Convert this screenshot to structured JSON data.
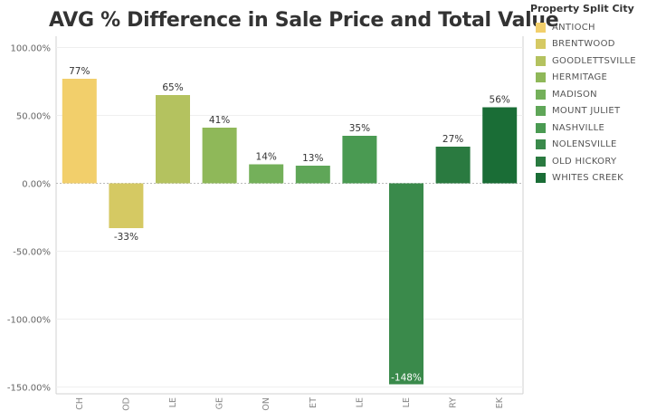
{
  "chart_data": {
    "type": "bar",
    "title": "AVG % Difference in Sale Price and Total Value",
    "xlabel": "",
    "ylabel": "",
    "categories": [
      "ANTIOCH",
      "BRENTWOOD",
      "GOODLETTSVILLE",
      "HERMITAGE",
      "MADISON",
      "MOUNT JULIET",
      "NASHVILLE",
      "NOLENSVILLE",
      "OLD HICKORY",
      "WHITES CREEK"
    ],
    "category_axis_labels": [
      "CH",
      "OD",
      "VI  LE",
      "GE",
      "ON",
      "ET",
      "LE",
      "LE",
      "RY",
      "EK"
    ],
    "values": [
      77,
      -33,
      65,
      41,
      14,
      13,
      35,
      -148,
      27,
      56
    ],
    "data_labels": [
      "77%",
      "-33%",
      "65%",
      "41%",
      "14%",
      "13%",
      "35%",
      "-148%",
      "27%",
      "56%"
    ],
    "colors": [
      "#F2CF6B",
      "#D5C963",
      "#B4C25F",
      "#8FB859",
      "#74B05A",
      "#5FA658",
      "#4A9A52",
      "#3A8A4B",
      "#2A7A40",
      "#1A6D36"
    ],
    "yticks": [
      100,
      50,
      0,
      -50,
      -100,
      -150
    ],
    "ytick_labels": [
      "100.00%",
      "50.00%",
      "0.00%",
      "-50.00%",
      "-100.00%",
      "-150.00%"
    ],
    "ylim": [
      -155,
      105
    ],
    "grid": true,
    "legend": {
      "title": "Property Split City",
      "placement": "right",
      "entries": [
        "ANTIOCH",
        "BRENTWOOD",
        "GOODLETTSVILLE",
        "HERMITAGE",
        "MADISON",
        "MOUNT JULIET",
        "NASHVILLE",
        "NOLENSVILLE",
        "OLD HICKORY",
        "WHITES CREEK"
      ]
    }
  }
}
